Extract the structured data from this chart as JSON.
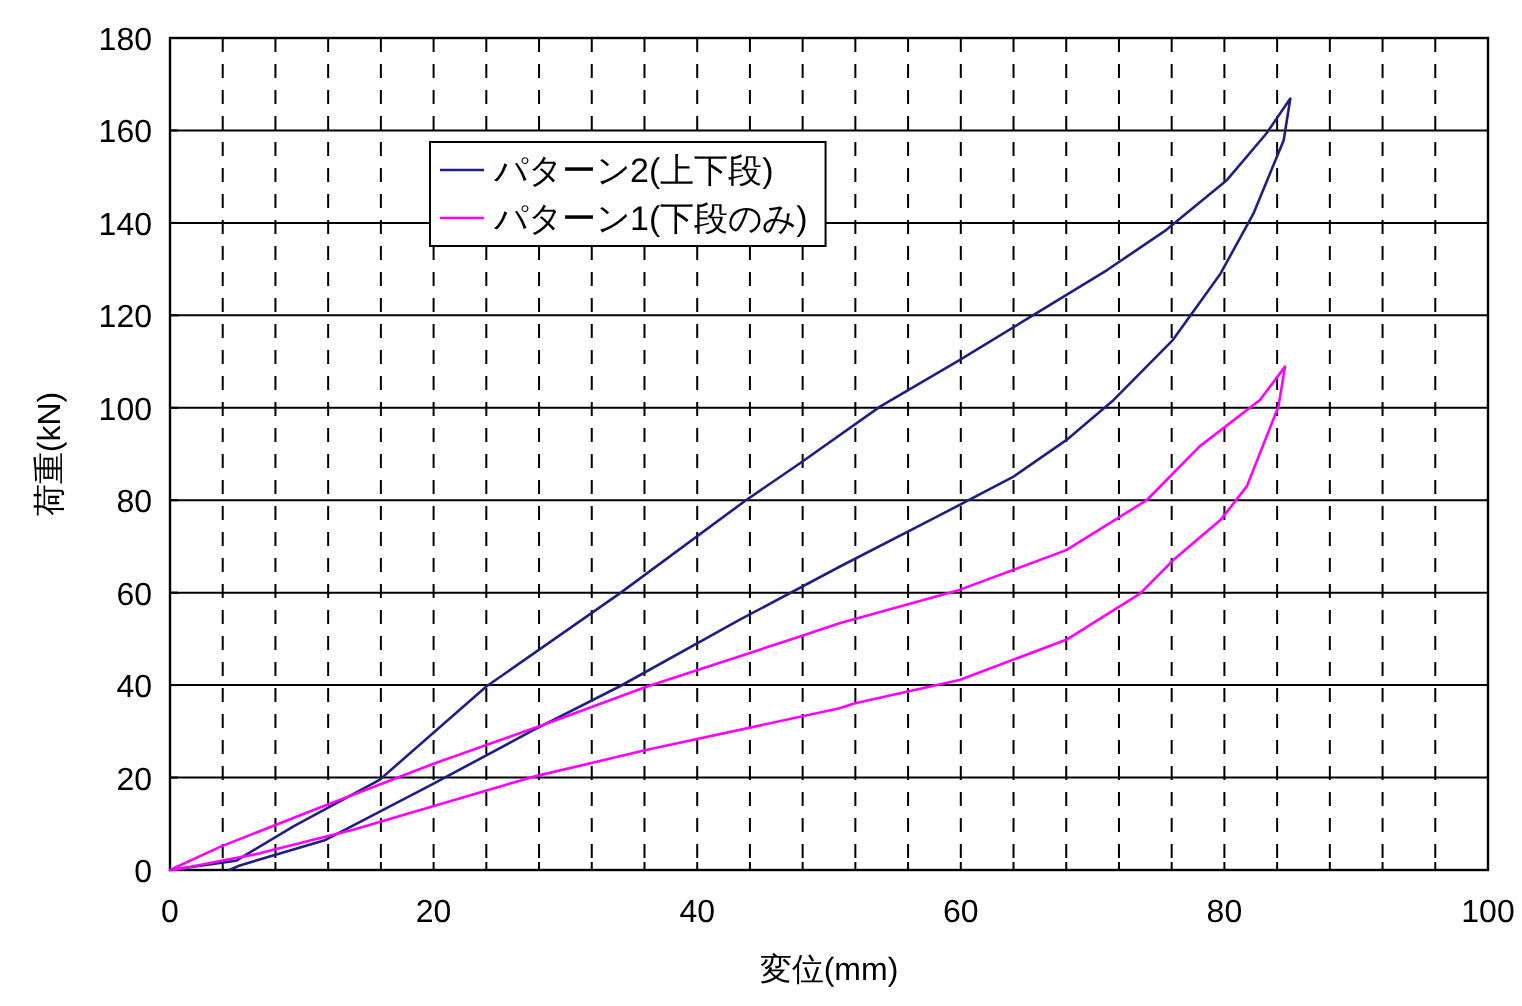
{
  "chart_data": {
    "type": "line",
    "xlabel": "変位(mm)",
    "ylabel": "荷重(kN)",
    "xlim": [
      0,
      100
    ],
    "ylim": [
      0,
      180
    ],
    "xticks": [
      0,
      {
        "value": 4,
        "label": null
      },
      {
        "value": 8,
        "label": null
      },
      {
        "value": 12,
        "label": null
      },
      {
        "value": 16,
        "label": null
      },
      20,
      {
        "value": 24,
        "label": null
      },
      {
        "value": 28,
        "label": null
      },
      {
        "value": 32,
        "label": null
      },
      {
        "value": 36,
        "label": null
      },
      40,
      {
        "value": 44,
        "label": null
      },
      {
        "value": 48,
        "label": null
      },
      {
        "value": 52,
        "label": null
      },
      {
        "value": 56,
        "label": null
      },
      60,
      {
        "value": 64,
        "label": null
      },
      {
        "value": 68,
        "label": null
      },
      {
        "value": 72,
        "label": null
      },
      {
        "value": 76,
        "label": null
      },
      80,
      {
        "value": 84,
        "label": null
      },
      {
        "value": 88,
        "label": null
      },
      {
        "value": 92,
        "label": null
      },
      {
        "value": 96,
        "label": null
      },
      100
    ],
    "yticks": [
      0,
      20,
      40,
      60,
      80,
      100,
      120,
      140,
      160,
      180
    ],
    "grid": true,
    "legend": "top left",
    "marker": "none",
    "line_style": "solid",
    "series": [
      {
        "name": "パターン2(上下段)",
        "color": "#1f1f80",
        "x": [
          0,
          5,
          9.4,
          15.9,
          24,
          34.1,
          43.7,
          47.8,
          53.9,
          59.9,
          64.5,
          71.1,
          75.6,
          80.2,
          83.2,
          85,
          84.5,
          82.2,
          79.7,
          76.1,
          71.6,
          68,
          64,
          57.9,
          50.8,
          43.2,
          34.1,
          27.6,
          20,
          11.8,
          5.3,
          4.5
        ],
        "values": [
          0,
          2,
          9.5,
          19.5,
          39.7,
          59.8,
          80,
          88,
          100.3,
          110.3,
          118.3,
          129.8,
          138.5,
          149.3,
          159.4,
          166.9,
          157.9,
          142,
          129,
          114.7,
          101.7,
          93,
          85.1,
          76,
          65.6,
          54.1,
          39.7,
          30.3,
          18.7,
          6.5,
          1,
          0
        ]
      },
      {
        "name": "パターン1(下段のみ)",
        "color": "#ff00ff",
        "x": [
          0,
          3.8,
          10.9,
          20,
          28.6,
          36.2,
          47.8,
          50.8,
          59.9,
          68,
          74.1,
          78.1,
          82.7,
          84.6,
          84.1,
          81.7,
          79.7,
          76.1,
          73.6,
          68,
          59.9,
          51.9,
          50.8,
          36.2,
          27.6,
          13.9,
          6.8,
          0.3
        ],
        "values": [
          0,
          5,
          13,
          23,
          31.7,
          39.7,
          50.5,
          53.4,
          60.6,
          69.2,
          80,
          91.6,
          101.7,
          108.9,
          100.3,
          83,
          75.7,
          67,
          59.8,
          49.8,
          41.1,
          36,
          35,
          26,
          20.2,
          8.7,
          3.6,
          0
        ]
      }
    ]
  }
}
